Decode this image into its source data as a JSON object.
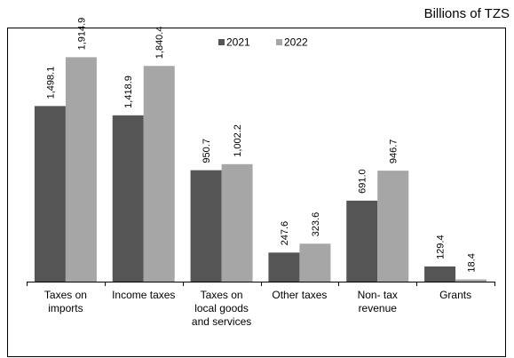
{
  "chart_data": {
    "type": "bar",
    "unit_label": "Billions of TZS",
    "categories": [
      [
        "Taxes on",
        "imports"
      ],
      [
        "Income taxes"
      ],
      [
        "Taxes on",
        "local goods",
        "and services"
      ],
      [
        "Other taxes"
      ],
      [
        "Non- tax",
        "revenue"
      ],
      [
        "Grants"
      ]
    ],
    "series": [
      {
        "name": "2021",
        "color": "#555555",
        "values": [
          1498.1,
          1418.9,
          950.7,
          247.6,
          691.0,
          129.4
        ],
        "labels": [
          "1,498.1",
          "1,418.9",
          "950.7",
          "247.6",
          "691.0",
          "129.4"
        ]
      },
      {
        "name": "2022",
        "color": "#a6a6a6",
        "values": [
          1914.9,
          1840.4,
          1002.2,
          323.6,
          946.7,
          18.4
        ],
        "labels": [
          "1,914.9",
          "1,840.4",
          "1,002.2",
          "323.6",
          "946.7",
          "18.4"
        ]
      }
    ],
    "ylim": [
      0,
      2350
    ],
    "legend_position": "top-center",
    "grid": false,
    "xlabel": "",
    "ylabel": ""
  }
}
